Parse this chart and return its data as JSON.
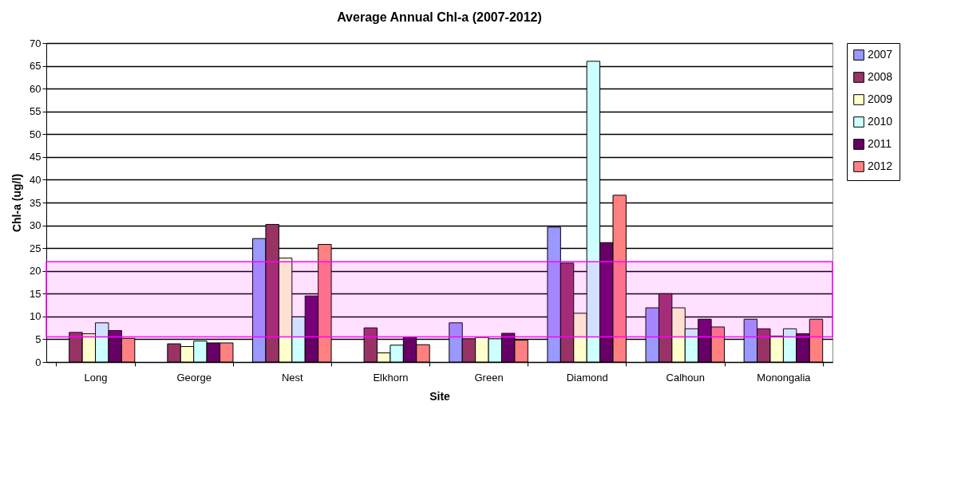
{
  "chart_data": {
    "type": "bar",
    "title": "Average Annual Chl-a (2007-2012)",
    "xlabel": "Site",
    "ylabel": "Chl-a (ug/l)",
    "categories": [
      "Long",
      "George",
      "Nest",
      "Elkhorn",
      "Green",
      "Diamond",
      "Calhoun",
      "Monongalia"
    ],
    "series": [
      {
        "name": "2007",
        "color": "#9999ff",
        "values": [
          null,
          null,
          27.1,
          null,
          8.6,
          29.6,
          11.9,
          9.4
        ]
      },
      {
        "name": "2008",
        "color": "#993366",
        "values": [
          6.5,
          4.0,
          30.2,
          7.5,
          5.1,
          21.7,
          15,
          7.3
        ]
      },
      {
        "name": "2009",
        "color": "#ffffcc",
        "values": [
          6.2,
          3.4,
          22.8,
          2.0,
          5.4,
          10.7,
          11.9,
          5.7
        ]
      },
      {
        "name": "2010",
        "color": "#ccffff",
        "values": [
          8.6,
          4.6,
          9.9,
          3.7,
          5.1,
          66,
          7.3,
          7.3
        ]
      },
      {
        "name": "2011",
        "color": "#660066",
        "values": [
          6.9,
          4.2,
          14.5,
          5.4,
          6.3,
          26.2,
          9.4,
          6.2
        ]
      },
      {
        "name": "2012",
        "color": "#ff8080",
        "values": [
          5.2,
          4.2,
          25.8,
          3.8,
          4.8,
          36.6,
          7.7,
          9.4
        ]
      }
    ],
    "ylim": [
      0,
      70
    ],
    "yticks": [
      0,
      5,
      10,
      15,
      20,
      25,
      30,
      35,
      40,
      45,
      50,
      55,
      60,
      65,
      70
    ],
    "bands": [
      {
        "axis": "y",
        "from": 5.5,
        "to": 22,
        "color": "#ff00ff"
      }
    ],
    "grid": "y",
    "legend": "right"
  }
}
